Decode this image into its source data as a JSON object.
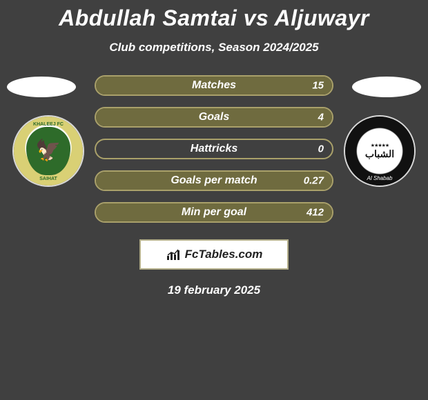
{
  "title": "Abdullah Samtai vs Aljuwayr",
  "subtitle": "Club competitions, Season 2024/2025",
  "date": "19 february 2025",
  "brand": "FcTables.com",
  "pill_border_color": "#aaa16a",
  "pill_fill_color": "#6f6b3f",
  "background_color": "#404040",
  "stats": [
    {
      "label": "Matches",
      "value": "15",
      "fill_pct": 100
    },
    {
      "label": "Goals",
      "value": "4",
      "fill_pct": 100
    },
    {
      "label": "Hattricks",
      "value": "0",
      "fill_pct": 0
    },
    {
      "label": "Goals per match",
      "value": "0.27",
      "fill_pct": 100
    },
    {
      "label": "Min per goal",
      "value": "412",
      "fill_pct": 100
    }
  ],
  "left_badge": {
    "top_text": "KHALEEJ FC",
    "bottom_text": "SAIHAT"
  },
  "right_badge": {
    "script": "Al Shabab"
  }
}
